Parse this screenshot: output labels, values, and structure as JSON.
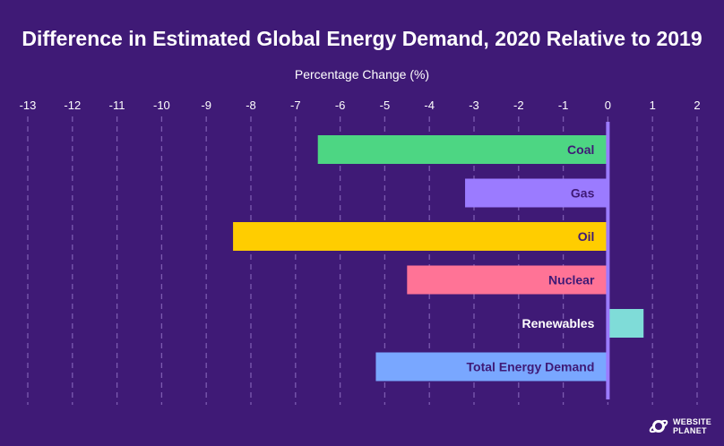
{
  "chart_data": {
    "type": "bar",
    "orientation": "horizontal",
    "title": "Difference in Estimated Global Energy Demand, 2020 Relative to 2019",
    "xlabel": "Percentage Change (%)",
    "ylabel": "",
    "xlim": [
      -13,
      2
    ],
    "xticks": [
      "-13",
      "-12",
      "-11",
      "-10",
      "-9",
      "-8",
      "-7",
      "-6",
      "-5",
      "-4",
      "-3",
      "-2",
      "-1",
      "0",
      "1",
      "2"
    ],
    "grid": true,
    "categories": [
      "Coal",
      "Gas",
      "Oil",
      "Nuclear",
      "Renewables",
      "Total Energy Demand"
    ],
    "values": [
      -6.5,
      -3.2,
      -8.4,
      -4.5,
      0.8,
      -5.2
    ],
    "colors": [
      "#4dd683",
      "#9b7bff",
      "#ffcd00",
      "#ff7396",
      "#7fdcd8",
      "#79a7ff"
    ],
    "label_colors": [
      "#3f1a76",
      "#3f1a76",
      "#3f1a76",
      "#3f1a76",
      "#ffffff",
      "#3f1a76"
    ]
  },
  "logo": {
    "text": "WEBSITE\nPLANET",
    "icon": "planet-icon"
  }
}
